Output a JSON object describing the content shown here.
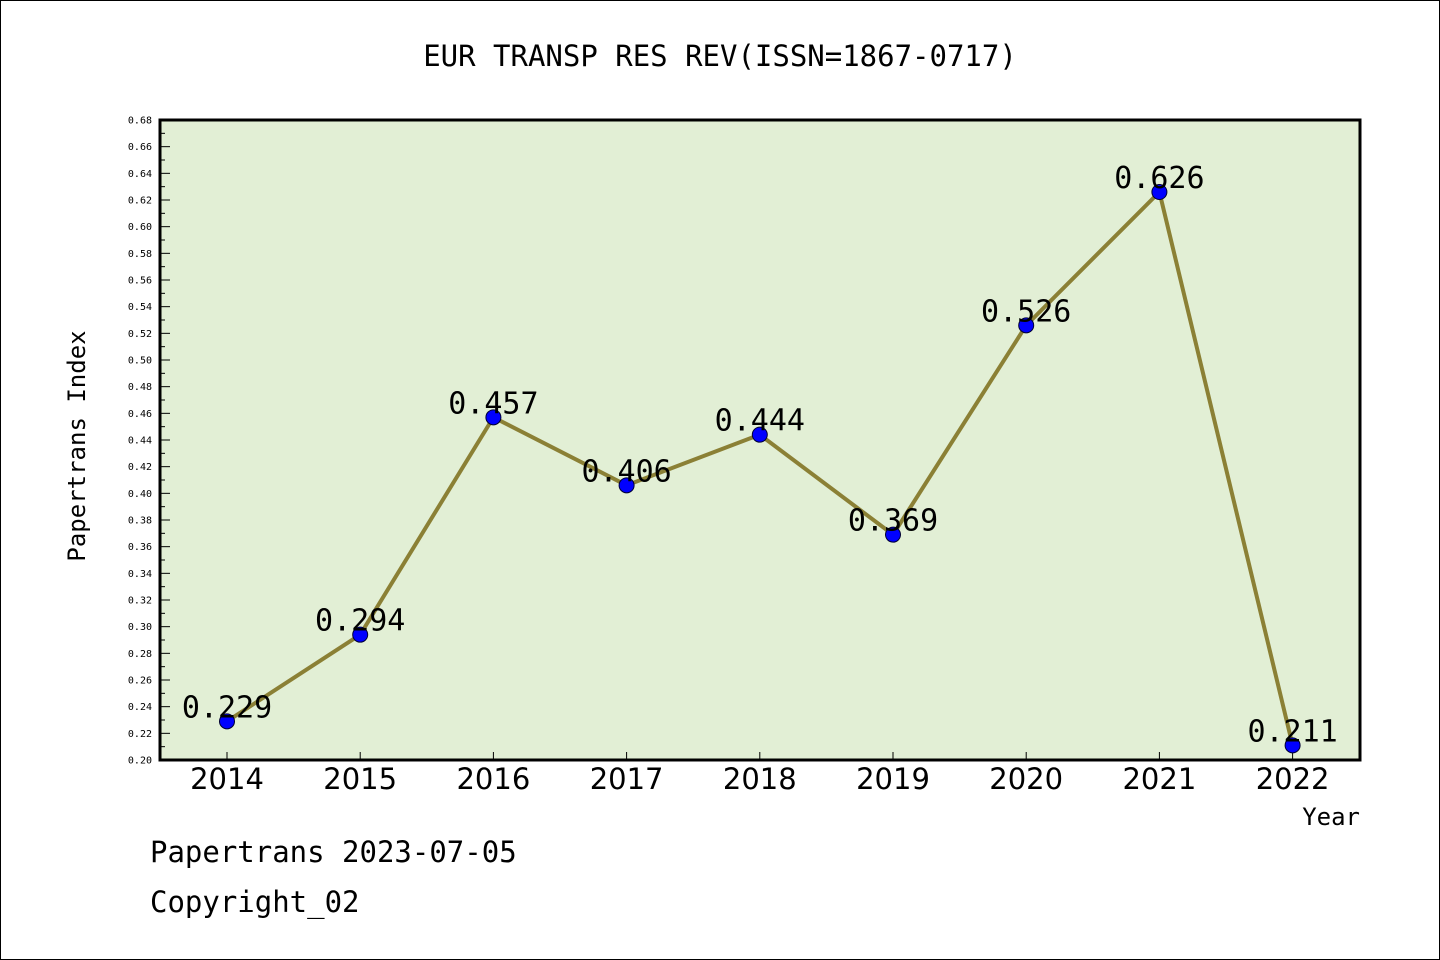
{
  "chart_data": {
    "type": "line",
    "title": "EUR TRANSP RES REV(ISSN=1867-0717)",
    "xlabel": "Year",
    "ylabel": "Papertrans Index",
    "categories": [
      "2014",
      "2015",
      "2016",
      "2017",
      "2018",
      "2019",
      "2020",
      "2021",
      "2022"
    ],
    "series": [
      {
        "values": [
          0.229,
          0.294,
          0.457,
          0.406,
          0.444,
          0.369,
          0.526,
          0.626,
          0.211
        ],
        "labels": [
          "0.229",
          "0.294",
          "0.457",
          "0.406",
          "0.444",
          "0.369",
          "0.526",
          "0.626",
          "0.211"
        ]
      }
    ],
    "ylim": [
      0.2,
      0.68
    ],
    "yticks": [
      "0.20",
      "0.22",
      "0.24",
      "0.26",
      "0.28",
      "0.30",
      "0.32",
      "0.34",
      "0.36",
      "0.38",
      "0.40",
      "0.42",
      "0.44",
      "0.46",
      "0.48",
      "0.50",
      "0.52",
      "0.54",
      "0.56",
      "0.58",
      "0.60",
      "0.62",
      "0.64",
      "0.66",
      "0.68"
    ],
    "grid": false,
    "colors": {
      "plot_background": "#e2efd5",
      "line": "#8b8035",
      "marker": "#0000ff"
    }
  },
  "footer": {
    "date_line": "Papertrans 2023-07-05",
    "copyright": "Copyright_02"
  }
}
